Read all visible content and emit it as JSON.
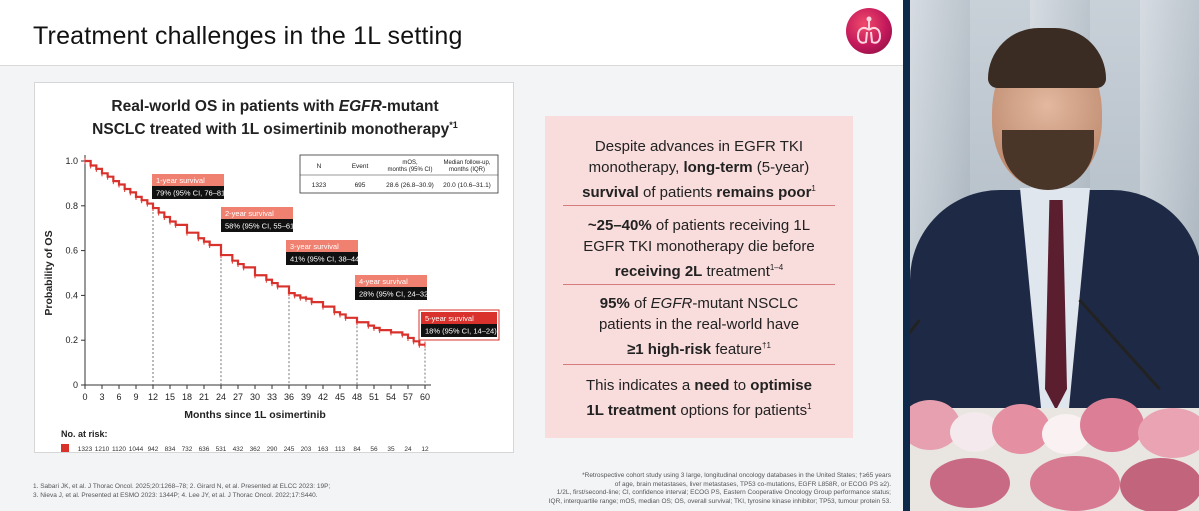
{
  "slide": {
    "title": "Treatment challenges in the 1L setting",
    "logo_icon": "lungs-logo-icon"
  },
  "chart_panel": {
    "title_line1_pre": "Real-world OS in patients with ",
    "title_line1_italic": "EGFR",
    "title_line1_post": "-mutant",
    "title_line2": "NSCLC treated with 1L osimertinib monotherapy",
    "title_sup": "*1"
  },
  "chart_data": {
    "type": "line",
    "title": "Real-world OS in patients with EGFR-mutant NSCLC treated with 1L osimertinib monotherapy*1",
    "xlabel": "Months since 1L osimertinib",
    "ylabel": "Probability of OS",
    "xlim": [
      0,
      60
    ],
    "ylim": [
      0,
      1.0
    ],
    "xticks": [
      0,
      3,
      6,
      9,
      12,
      15,
      18,
      21,
      24,
      27,
      30,
      33,
      36,
      39,
      42,
      45,
      48,
      51,
      54,
      57,
      60
    ],
    "yticks": [
      "0",
      "0.2",
      "0.4",
      "0.6",
      "0.8",
      "1.0"
    ],
    "yticks_values": [
      0,
      0.2,
      0.4,
      0.6,
      0.8,
      1.0
    ],
    "series": [
      {
        "color": "#d9312b",
        "x": [
          0,
          1,
          2,
          3,
          4,
          5,
          6,
          7,
          8,
          9,
          10,
          11,
          12,
          13,
          14,
          15,
          16,
          18,
          20,
          21,
          22,
          24,
          26,
          27,
          28,
          30,
          32,
          33,
          34,
          36,
          37,
          38,
          39,
          40,
          42,
          44,
          45,
          46,
          48,
          50,
          51,
          52,
          54,
          56,
          57,
          58,
          59,
          60
        ],
        "y": [
          1.0,
          0.98,
          0.965,
          0.945,
          0.93,
          0.91,
          0.895,
          0.875,
          0.86,
          0.84,
          0.825,
          0.81,
          0.79,
          0.77,
          0.75,
          0.73,
          0.715,
          0.68,
          0.655,
          0.64,
          0.625,
          0.58,
          0.555,
          0.54,
          0.525,
          0.49,
          0.47,
          0.455,
          0.44,
          0.41,
          0.4,
          0.39,
          0.385,
          0.37,
          0.35,
          0.325,
          0.315,
          0.3,
          0.28,
          0.265,
          0.255,
          0.245,
          0.235,
          0.225,
          0.21,
          0.195,
          0.18,
          0.18
        ]
      }
    ],
    "annotations": [
      {
        "x": 12,
        "y": 0.79,
        "label": "1-year survival",
        "value": "79% (95% CI, 76–81)"
      },
      {
        "x": 24,
        "y": 0.58,
        "label": "2-year survival",
        "value": "58% (95% CI, 55–61)"
      },
      {
        "x": 36,
        "y": 0.41,
        "label": "3-year survival",
        "value": "41% (95% CI, 38–44)"
      },
      {
        "x": 48,
        "y": 0.28,
        "label": "4-year survival",
        "value": "28% (95% CI, 24–32)"
      },
      {
        "x": 60,
        "y": 0.18,
        "label": "5-year survival",
        "value": "18% (95% CI, 14–24)"
      }
    ],
    "summary_table": {
      "headers": [
        "N",
        "Event",
        "mOS, months (95% CI)",
        "Median follow-up, months (IQR)"
      ],
      "row": [
        "1323",
        "695",
        "28.6 (26.8–30.9)",
        "20.0 (10.6–31.1)"
      ]
    },
    "at_risk": {
      "label": "No. at risk:",
      "values": [
        "1323",
        "1210",
        "1120",
        "1044",
        "942",
        "834",
        "732",
        "636",
        "531",
        "432",
        "362",
        "290",
        "245",
        "203",
        "163",
        "113",
        "84",
        "56",
        "35",
        "24",
        "12"
      ]
    },
    "grid": false,
    "legend": "none"
  },
  "key_points": {
    "p1_a": "Despite advances in EGFR TKI",
    "p1_b": "monotherapy, ",
    "p1_b_bold": "long-term",
    "p1_b_post": " (5-year)",
    "p1_c_bold": "survival",
    "p1_c_mid": " of patients ",
    "p1_c_bold2": "remains poor",
    "p1_c_sup": "1",
    "p2_a_bold": "~25–40%",
    "p2_a_post": " of patients receiving 1L",
    "p2_b": "EGFR TKI monotherapy die before",
    "p2_c_bold": "receiving 2L",
    "p2_c_post": " treatment",
    "p2_c_sup": "1–4",
    "p3_a_bold": "95%",
    "p3_a_mid": " of ",
    "p3_a_italic": "EGFR",
    "p3_a_post": "-mutant NSCLC",
    "p3_b": "patients in the real-world have",
    "p3_c_bold": "≥1 high-risk",
    "p3_c_post": " feature",
    "p3_c_sup": "†1",
    "p4_a": "This indicates a ",
    "p4_a_bold": "need",
    "p4_a_mid": " to ",
    "p4_a_bold2": "optimise",
    "p4_b_bold": "1L treatment",
    "p4_b_post": " options for patients",
    "p4_b_sup": "1"
  },
  "footnotes": {
    "left_1": "1. Sabari JK, et al. J Thorac Oncol. 2025;20:1268–78; 2. Girard N, et al. Presented at ELCC 2023: 19P;",
    "left_2": "3. Nieva J, et al. Presented at ESMO 2023: 1344P; 4. Lee JY, et al. J Thorac Oncol. 2022;17:S440.",
    "right_1": "*Retrospective cohort study using 3 large, longitudinal oncology databases in the United States; †≥65 years",
    "right_2": "of age, brain metastases, liver metastases, TP53 co-mutations, EGFR L858R, or ECOG PS ≥2).",
    "right_3": "1/2L, first/second-line; CI, confidence interval; ECOG PS, Eastern Cooperative Oncology Group performance status;",
    "right_4": "IQR, interquartile range; mOS, median OS; OS, overall survival; TKI, tyrosine kinase inhibitor; TP53, tumour protein 53."
  },
  "colors": {
    "accent_red": "#d9312b",
    "salmon": "#f08070",
    "panel_pink": "#f9dcdc",
    "dark_label": "#111111"
  }
}
